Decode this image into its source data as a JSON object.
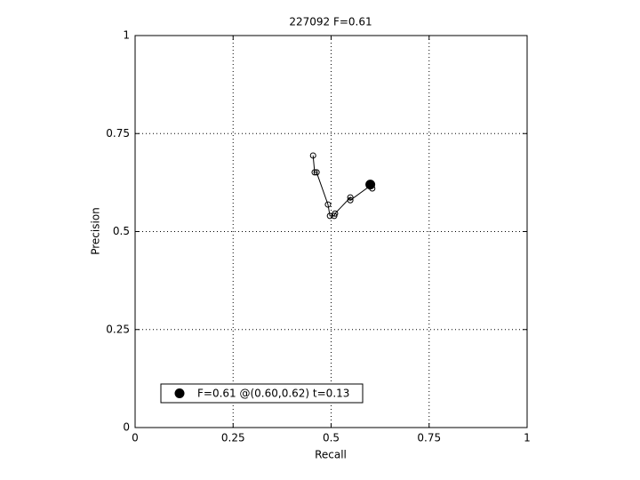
{
  "chart_data": {
    "type": "line",
    "title": "227092 F=0.61",
    "x_label": "Recall",
    "y_label": "Precision",
    "xlim": [
      0,
      1
    ],
    "ylim": [
      0,
      1
    ],
    "xticks": [
      0,
      0.25,
      0.5,
      0.75,
      1
    ],
    "yticks": [
      0,
      0.25,
      0.5,
      0.75,
      1
    ],
    "grid": true,
    "series": [
      {
        "color": "#000000",
        "x": [
          0.454,
          0.458,
          0.463,
          0.492,
          0.497,
          0.508,
          0.51,
          0.549,
          0.549,
          0.603,
          0.605
        ],
        "y": [
          0.694,
          0.651,
          0.651,
          0.569,
          0.54,
          0.54,
          0.546,
          0.587,
          0.58,
          0.619,
          0.61
        ]
      }
    ],
    "best": {
      "x": 0.6,
      "y": 0.62,
      "label": "F=0.61 @(0.60,0.62) t=0.13"
    },
    "legend": "lower left"
  }
}
